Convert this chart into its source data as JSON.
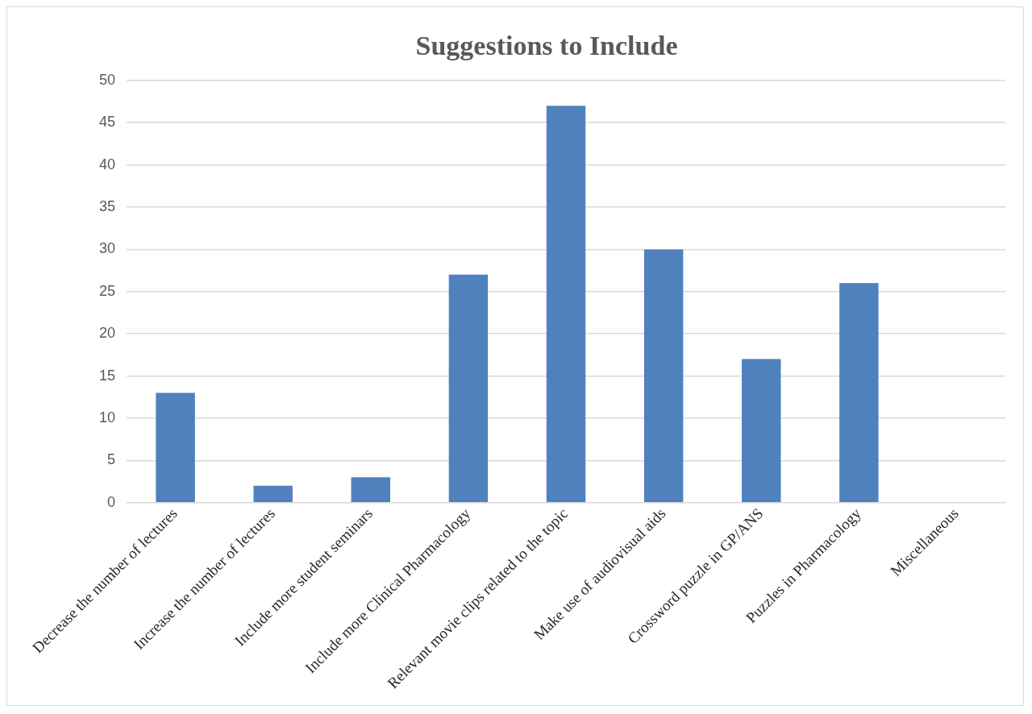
{
  "chart_data": {
    "type": "bar",
    "title": "Suggestions to Include",
    "categories": [
      "Decrease the number of lectures",
      "Increase the number of lectures",
      "Include more student seminars",
      "Include more Clinical Pharmacology",
      "Relevant movie clips related to the topic",
      "Make use of audiovisual aids",
      "Crossword puzzle in GP/ANS",
      "Puzzles in Pharmacology",
      "Miscellaneous"
    ],
    "values": [
      13,
      2,
      3,
      27,
      47,
      30,
      17,
      26,
      0
    ],
    "color": "#4f81bd",
    "ylim": [
      0,
      50
    ],
    "yticks": [
      0,
      5,
      10,
      15,
      20,
      25,
      30,
      35,
      40,
      45,
      50
    ],
    "grid": "y",
    "legend": false
  }
}
